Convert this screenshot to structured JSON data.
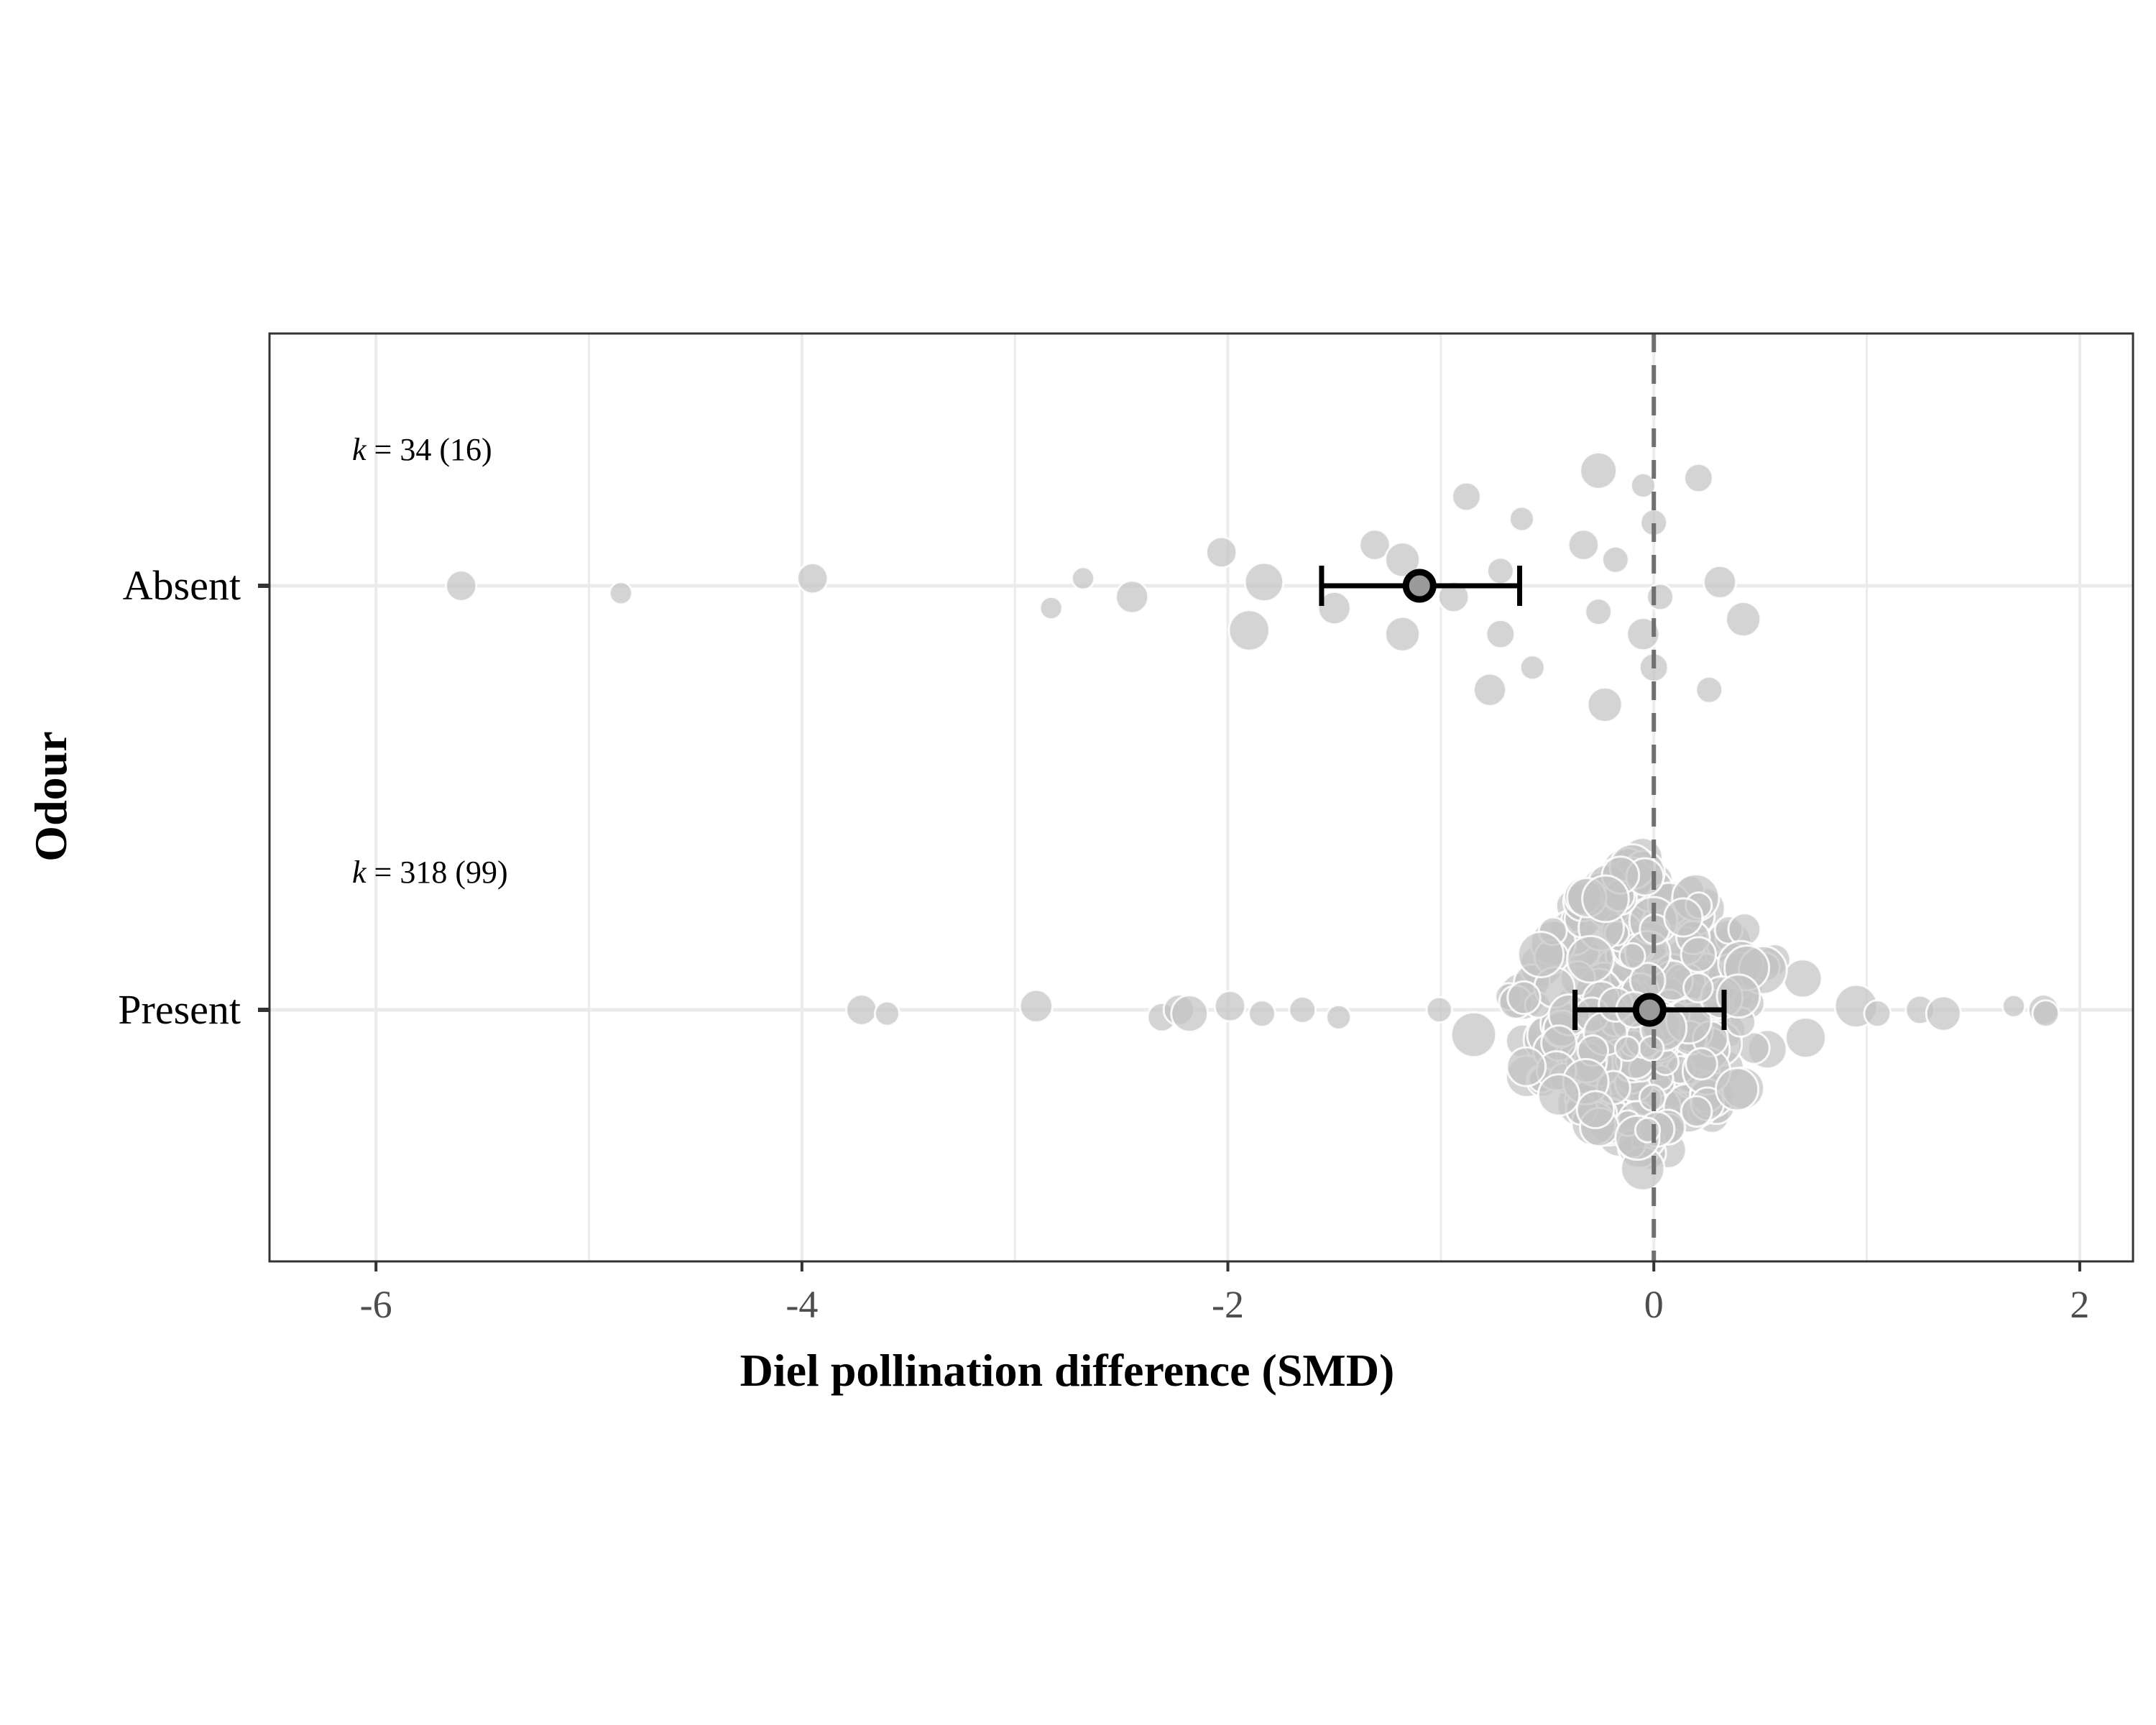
{
  "chart_data": {
    "type": "scatter",
    "subtype": "orchard plot",
    "title": "",
    "xlabel": "Diel pollination difference (SMD)",
    "ylabel": "Odour",
    "xlim": [
      -6.5,
      2.25
    ],
    "xticks": [
      -6,
      -4,
      -2,
      0,
      2
    ],
    "xtick_labels": [
      "-6",
      "-4",
      "-2",
      "0",
      "2"
    ],
    "grid": true,
    "reference_line": {
      "x": 0,
      "style": "dashed"
    },
    "categories": [
      "Absent",
      "Present"
    ],
    "colors": {
      "points": "#c4c4c4",
      "point_outline": "#ffffff",
      "estimate": "#000000",
      "estimate_fill": "#9a9a9a",
      "grid": "#ebebeb",
      "ref_line": "#707070"
    },
    "groups": [
      {
        "name": "Absent",
        "k_label": "34",
        "studies_label": "(16)",
        "estimate": -1.1,
        "ci": [
          -1.56,
          -0.63
        ],
        "effects": [
          {
            "x": -5.6,
            "jitter": 0.0,
            "w": 0.4
          },
          {
            "x": -4.85,
            "jitter": -0.02,
            "w": 0.2
          },
          {
            "x": -3.95,
            "jitter": 0.02,
            "w": 0.4
          },
          {
            "x": -2.68,
            "jitter": 0.02,
            "w": 0.2
          },
          {
            "x": -2.83,
            "jitter": -0.06,
            "w": 0.2
          },
          {
            "x": -2.45,
            "jitter": -0.03,
            "w": 0.45
          },
          {
            "x": -2.03,
            "jitter": 0.09,
            "w": 0.4
          },
          {
            "x": -1.83,
            "jitter": 0.01,
            "w": 0.6
          },
          {
            "x": -1.9,
            "jitter": -0.12,
            "w": 0.65
          },
          {
            "x": -1.5,
            "jitter": -0.06,
            "w": 0.45
          },
          {
            "x": -1.31,
            "jitter": 0.11,
            "w": 0.4
          },
          {
            "x": -1.18,
            "jitter": 0.07,
            "w": 0.5
          },
          {
            "x": -1.18,
            "jitter": -0.13,
            "w": 0.5
          },
          {
            "x": -0.94,
            "jitter": -0.03,
            "w": 0.4
          },
          {
            "x": -0.88,
            "jitter": 0.24,
            "w": 0.35
          },
          {
            "x": -0.72,
            "jitter": 0.04,
            "w": 0.3
          },
          {
            "x": -0.72,
            "jitter": -0.13,
            "w": 0.35
          },
          {
            "x": -0.77,
            "jitter": -0.28,
            "w": 0.45
          },
          {
            "x": -0.62,
            "jitter": 0.18,
            "w": 0.25
          },
          {
            "x": -0.57,
            "jitter": -0.22,
            "w": 0.25
          },
          {
            "x": -0.33,
            "jitter": 0.11,
            "w": 0.4
          },
          {
            "x": -0.26,
            "jitter": 0.31,
            "w": 0.55
          },
          {
            "x": -0.26,
            "jitter": -0.07,
            "w": 0.3
          },
          {
            "x": -0.18,
            "jitter": 0.07,
            "w": 0.3
          },
          {
            "x": -0.23,
            "jitter": -0.32,
            "w": 0.5
          },
          {
            "x": -0.05,
            "jitter": 0.27,
            "w": 0.25
          },
          {
            "x": -0.05,
            "jitter": -0.13,
            "w": 0.45
          },
          {
            "x": 0.0,
            "jitter": 0.17,
            "w": 0.3
          },
          {
            "x": 0.0,
            "jitter": -0.22,
            "w": 0.35
          },
          {
            "x": 0.03,
            "jitter": -0.03,
            "w": 0.3
          },
          {
            "x": 0.21,
            "jitter": 0.29,
            "w": 0.35
          },
          {
            "x": 0.26,
            "jitter": -0.28,
            "w": 0.3
          },
          {
            "x": 0.31,
            "jitter": 0.01,
            "w": 0.45
          },
          {
            "x": 0.42,
            "jitter": -0.09,
            "w": 0.5
          }
        ]
      },
      {
        "name": "Present",
        "k_label": "318",
        "studies_label": "(99)",
        "estimate": -0.02,
        "ci": [
          -0.37,
          0.33
        ],
        "effects": [
          {
            "x": -3.72,
            "jitter": 0.0,
            "w": 0.4
          },
          {
            "x": -3.6,
            "jitter": -0.01,
            "w": 0.25
          },
          {
            "x": -2.9,
            "jitter": 0.01,
            "w": 0.45
          },
          {
            "x": -2.31,
            "jitter": -0.02,
            "w": 0.35
          },
          {
            "x": -2.23,
            "jitter": 0.0,
            "w": 0.4
          },
          {
            "x": -2.18,
            "jitter": -0.01,
            "w": 0.55
          },
          {
            "x": -1.99,
            "jitter": 0.01,
            "w": 0.4
          },
          {
            "x": -1.84,
            "jitter": -0.01,
            "w": 0.3
          },
          {
            "x": -1.65,
            "jitter": 0.0,
            "w": 0.3
          },
          {
            "x": -1.48,
            "jitter": -0.02,
            "w": 0.25
          },
          {
            "x": 0.95,
            "jitter": 0.01,
            "w": 0.7
          },
          {
            "x": 1.05,
            "jitter": -0.01,
            "w": 0.3
          },
          {
            "x": 1.25,
            "jitter": 0.0,
            "w": 0.35
          },
          {
            "x": 1.36,
            "jitter": -0.01,
            "w": 0.5
          },
          {
            "x": 1.69,
            "jitter": 0.01,
            "w": 0.2
          },
          {
            "x": 1.83,
            "jitter": 0.0,
            "w": 0.4
          },
          {
            "x": 1.84,
            "jitter": -0.01,
            "w": 0.3
          }
        ],
        "dense_cluster": {
          "n": 301,
          "center": -0.05,
          "spread": 0.5,
          "range": [
            -1.45,
            0.9
          ]
        }
      }
    ]
  }
}
